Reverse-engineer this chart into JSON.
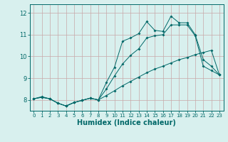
{
  "xlabel": "Humidex (Indice chaleur)",
  "bg_color": "#d8f0ee",
  "grid_color_v": "#c8a8a8",
  "grid_color_h": "#c8a8a8",
  "line_color": "#006868",
  "xlim": [
    -0.5,
    23.5
  ],
  "ylim": [
    7.5,
    12.4
  ],
  "yticks": [
    8,
    9,
    10,
    11,
    12
  ],
  "xticks": [
    0,
    1,
    2,
    3,
    4,
    5,
    6,
    7,
    8,
    9,
    10,
    11,
    12,
    13,
    14,
    15,
    16,
    17,
    18,
    19,
    20,
    21,
    22,
    23
  ],
  "series1_x": [
    0,
    1,
    2,
    3,
    4,
    5,
    6,
    7,
    8,
    9,
    10,
    11,
    12,
    13,
    14,
    15,
    16,
    17,
    18,
    19,
    20,
    21,
    22,
    23
  ],
  "series1_y": [
    8.05,
    8.15,
    8.05,
    7.85,
    7.72,
    7.88,
    7.98,
    8.08,
    8.0,
    8.8,
    9.5,
    10.7,
    10.85,
    11.05,
    11.6,
    11.2,
    11.15,
    11.85,
    11.55,
    11.55,
    11.0,
    9.85,
    9.55,
    9.15
  ],
  "series2_x": [
    0,
    1,
    2,
    3,
    4,
    5,
    6,
    7,
    8,
    9,
    10,
    11,
    12,
    13,
    14,
    15,
    16,
    17,
    18,
    19,
    20,
    21,
    22,
    23
  ],
  "series2_y": [
    8.05,
    8.12,
    8.05,
    7.85,
    7.72,
    7.88,
    7.98,
    8.08,
    8.0,
    8.5,
    9.1,
    9.65,
    10.05,
    10.35,
    10.85,
    10.95,
    11.0,
    11.45,
    11.45,
    11.45,
    10.95,
    9.55,
    9.35,
    9.15
  ],
  "series3_x": [
    0,
    1,
    2,
    3,
    4,
    5,
    6,
    7,
    8,
    9,
    10,
    11,
    12,
    13,
    14,
    15,
    16,
    17,
    18,
    19,
    20,
    21,
    22,
    23
  ],
  "series3_y": [
    8.05,
    8.12,
    8.05,
    7.85,
    7.72,
    7.88,
    7.98,
    8.08,
    8.0,
    8.2,
    8.42,
    8.65,
    8.85,
    9.05,
    9.25,
    9.42,
    9.55,
    9.7,
    9.85,
    9.95,
    10.08,
    10.18,
    10.28,
    9.15
  ]
}
